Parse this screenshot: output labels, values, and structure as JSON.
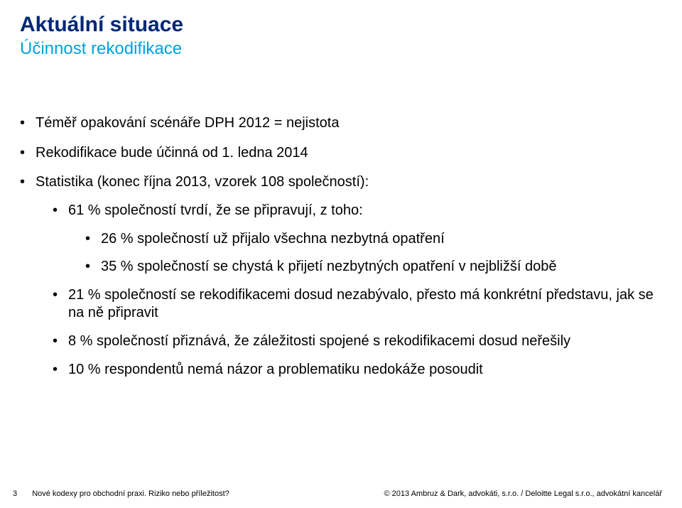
{
  "colors": {
    "title_main": "#002776",
    "title_sub": "#00a1de",
    "body_text": "#000000",
    "background": "#ffffff"
  },
  "typography": {
    "title_main_fontsize": 30,
    "title_main_fontweight": 700,
    "title_sub_fontsize": 24,
    "body_fontsize": 20,
    "footer_fontsize": 11
  },
  "title": {
    "main": "Aktuální situace",
    "sub": "Účinnost rekodifikace"
  },
  "bullets": {
    "item1": "Téměř opakování scénáře DPH 2012 = nejistota",
    "item2": "Rekodifikace bude účinná od 1. ledna 2014",
    "item3": "Statistika (konec října 2013, vzorek 108 společností):",
    "item3_sub1": "61 % společností tvrdí, že se připravují, z toho:",
    "item3_sub1_sub1": "26 % společností už přijalo všechna nezbytná opatření",
    "item3_sub1_sub2": "35 % společností se chystá k přijetí nezbytných opatření v nejbližší době",
    "item3_sub2": "21 % společností se rekodifikacemi dosud nezabývalo, přesto má konkrétní představu, jak se na ně připravit",
    "item3_sub3": "8 % společností přiznává, že záležitosti spojené s rekodifikacemi dosud neřešily",
    "item3_sub4": "10 % respondentů nemá názor a problematiku nedokáže posoudit"
  },
  "footer": {
    "page": "3",
    "left": "Nové kodexy pro obchodní praxi. Riziko nebo příležitost?",
    "right": "© 2013 Ambruz & Dark, advokáti, s.r.o. / Deloitte Legal s.r.o., advokátní kancelář"
  }
}
